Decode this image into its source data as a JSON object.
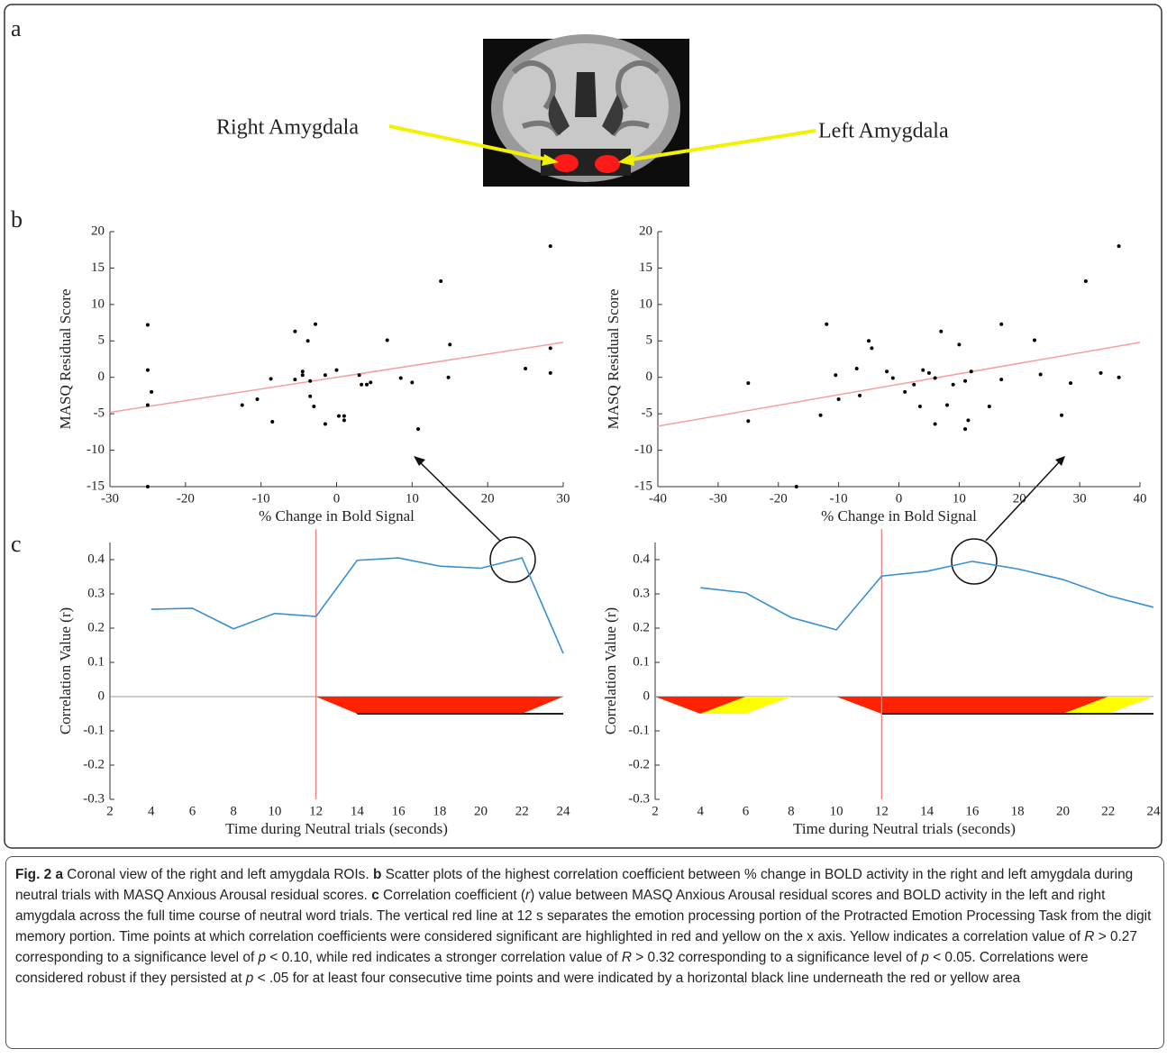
{
  "panel_labels": [
    "a",
    "b",
    "c"
  ],
  "brain_labels": [
    "Right Amygdala",
    "Left Amygdala"
  ],
  "chart_data": [
    {
      "type": "scatter",
      "xlabel": "% Change in Bold Signal",
      "ylabel": "MASQ Residual Score",
      "xlim": [
        -30,
        30
      ],
      "ylim": [
        -15,
        20
      ],
      "xticks": [
        -30,
        -20,
        -10,
        0,
        10,
        20,
        30
      ],
      "yticks": [
        -15,
        -10,
        -5,
        0,
        5,
        10,
        15,
        20
      ],
      "color": "#000000",
      "x": [
        -25,
        -25,
        -25,
        -24.5,
        -25,
        -12.5,
        -10.5,
        -8.7,
        -8.5,
        -5.5,
        -5.5,
        -4.5,
        -4.5,
        -3.8,
        -3.5,
        -3.5,
        -3,
        -2.8,
        -1.5,
        -1.5,
        0,
        0.3,
        1,
        1,
        3,
        3.3,
        4,
        4.5,
        6.7,
        8.5,
        10,
        10.8,
        13.8,
        14.8,
        15,
        25,
        28.3,
        28.3,
        28.3
      ],
      "y": [
        7.2,
        1,
        -3.8,
        -2,
        -15,
        -3.8,
        -3,
        -0.2,
        -6.1,
        6.3,
        -0.3,
        0.8,
        0.3,
        5,
        -2.6,
        -0.5,
        -4,
        7.3,
        0.3,
        -6.4,
        1,
        -5.3,
        -5.3,
        -5.9,
        0.3,
        -1,
        -1,
        -0.7,
        5.1,
        -0.1,
        -0.7,
        -7.1,
        13.2,
        0,
        4.5,
        1.2,
        18,
        4,
        0.6
      ],
      "trend": {
        "x": [
          -30,
          30
        ],
        "y": [
          -4.8,
          4.8
        ],
        "color": "#f4a0a0"
      }
    },
    {
      "type": "scatter",
      "xlabel": "% Change in Bold Signal",
      "ylabel": "MASQ Residual Score",
      "xlim": [
        -40,
        40
      ],
      "ylim": [
        -15,
        20
      ],
      "xticks": [
        -40,
        -30,
        -20,
        -10,
        0,
        10,
        20,
        30,
        40
      ],
      "yticks": [
        -15,
        -10,
        -5,
        0,
        5,
        10,
        15,
        20
      ],
      "color": "#000000",
      "x": [
        -25,
        -25,
        -17,
        -13,
        -12,
        -10.5,
        -10,
        -7,
        -6.5,
        -5,
        -4.5,
        -2,
        -1,
        1,
        2.5,
        3.5,
        4,
        5,
        6,
        6,
        7,
        8,
        9,
        10,
        11,
        11,
        11.5,
        12,
        15,
        17,
        17,
        22.5,
        23.5,
        27,
        28.5,
        31,
        33.5,
        36.5,
        36.5
      ],
      "y": [
        -0.8,
        -6,
        -15,
        -5.2,
        7.3,
        0.3,
        -3,
        1.2,
        -2.5,
        5,
        4,
        0.8,
        -0.1,
        -2,
        -1,
        -4,
        1,
        0.6,
        -0.1,
        -6.4,
        6.3,
        -3.8,
        -1,
        4.5,
        -0.5,
        -7.1,
        -5.9,
        0.8,
        -4,
        7.3,
        -0.3,
        5.1,
        0.4,
        -5.2,
        -0.8,
        13.2,
        0.6,
        18,
        0
      ],
      "trend": {
        "x": [
          -40,
          40
        ],
        "y": [
          -6.7,
          4.8
        ],
        "color": "#f4a0a0"
      }
    },
    {
      "type": "line",
      "xlabel": "Time during Neutral trials (seconds)",
      "ylabel": "Correlation Value (r)",
      "xlim": [
        2,
        24
      ],
      "ylim": [
        -0.3,
        0.45
      ],
      "xticks": [
        2,
        4,
        6,
        8,
        10,
        12,
        14,
        16,
        18,
        20,
        22,
        24
      ],
      "yticks": [
        -0.3,
        -0.2,
        -0.1,
        0,
        0.1,
        0.2,
        0.3,
        0.4
      ],
      "x": [
        4,
        6,
        8,
        10,
        12,
        14,
        16,
        18,
        20,
        22,
        24
      ],
      "values": [
        0.255,
        0.258,
        0.198,
        0.243,
        0.234,
        0.398,
        0.405,
        0.381,
        0.375,
        0.405,
        0.126
      ],
      "color": "#3a8fd0",
      "vline": 12,
      "vline_color": "#f08080",
      "regions": [
        {
          "color": "#ff2200",
          "x": [
            12,
            14,
            22,
            24
          ],
          "y": [
            0,
            -0.05,
            -0.05,
            0
          ]
        }
      ],
      "robust": {
        "x": [
          14,
          24
        ],
        "y": [
          -0.05,
          -0.05
        ],
        "color": "#000000"
      }
    },
    {
      "type": "line",
      "xlabel": "Time during Neutral trials (seconds)",
      "ylabel": "Correlation Value (r)",
      "xlim": [
        2,
        24
      ],
      "ylim": [
        -0.3,
        0.45
      ],
      "xticks": [
        2,
        4,
        6,
        8,
        10,
        12,
        14,
        16,
        18,
        20,
        22,
        24
      ],
      "yticks": [
        -0.3,
        -0.2,
        -0.1,
        0,
        0.1,
        0.2,
        0.3,
        0.4
      ],
      "x": [
        4,
        6,
        8,
        10,
        12,
        14,
        16,
        18,
        20,
        22,
        24
      ],
      "values": [
        0.318,
        0.303,
        0.231,
        0.195,
        0.352,
        0.366,
        0.395,
        0.373,
        0.342,
        0.295,
        0.261
      ],
      "color": "#3a8fd0",
      "vline": 12,
      "vline_color": "#f08080",
      "regions": [
        {
          "color": "#ff2200",
          "x": [
            2,
            4,
            6
          ],
          "y": [
            0,
            -0.05,
            0
          ]
        },
        {
          "color": "#ffff00",
          "x": [
            4,
            6,
            8,
            6
          ],
          "y": [
            -0.05,
            -0.05,
            0,
            0
          ]
        },
        {
          "color": "#ff2200",
          "x": [
            10,
            12,
            20,
            22
          ],
          "y": [
            0,
            -0.05,
            -0.05,
            0
          ]
        },
        {
          "color": "#ffff00",
          "x": [
            20,
            22,
            24,
            22
          ],
          "y": [
            -0.05,
            -0.05,
            0,
            0
          ]
        }
      ],
      "robust": {
        "x": [
          12,
          24
        ],
        "y": [
          -0.05,
          -0.05
        ],
        "color": "#000000"
      }
    }
  ],
  "caption": [
    {
      "text": "Fig. 2 a",
      "style": "bold"
    },
    {
      "text": " Coronal view of the right and left amygdala ROIs. ",
      "style": "normal"
    },
    {
      "text": "b",
      "style": "bold"
    },
    {
      "text": " Scatter plots of the highest correlation coefficient between % change in BOLD activity in the right and left amygdala during neutral trials with MASQ Anxious Arousal residual scores. ",
      "style": "normal"
    },
    {
      "text": "c",
      "style": "bold"
    },
    {
      "text": " Correlation coefficient (",
      "style": "normal"
    },
    {
      "text": "r",
      "style": "italic"
    },
    {
      "text": ") value between MASQ Anxious Arousal residual scores and BOLD activity in the left and right amygdala across the full time course of neutral word trials. The vertical red line at 12 s separates the emotion processing portion of the Protracted Emotion Processing Task from the digit memory portion. Time points at which correlation coefficients were considered significant are highlighted in red and yellow on the x axis. Yellow indicates a correlation value of ",
      "style": "normal"
    },
    {
      "text": "R",
      "style": "italic"
    },
    {
      "text": " > 0.27 corresponding to a significance level of ",
      "style": "normal"
    },
    {
      "text": "p",
      "style": "italic"
    },
    {
      "text": " < 0.10, while red indicates a stronger correlation value of ",
      "style": "normal"
    },
    {
      "text": "R",
      "style": "italic"
    },
    {
      "text": " > 0.32 corresponding to a significance level of ",
      "style": "normal"
    },
    {
      "text": "p",
      "style": "italic"
    },
    {
      "text": " < 0.05. Correlations were considered robust if they persisted at ",
      "style": "normal"
    },
    {
      "text": "p",
      "style": "italic"
    },
    {
      "text": " < .05 for at least four consecutive time points and were indicated by a horizontal black line underneath the red or yellow area",
      "style": "normal"
    }
  ]
}
